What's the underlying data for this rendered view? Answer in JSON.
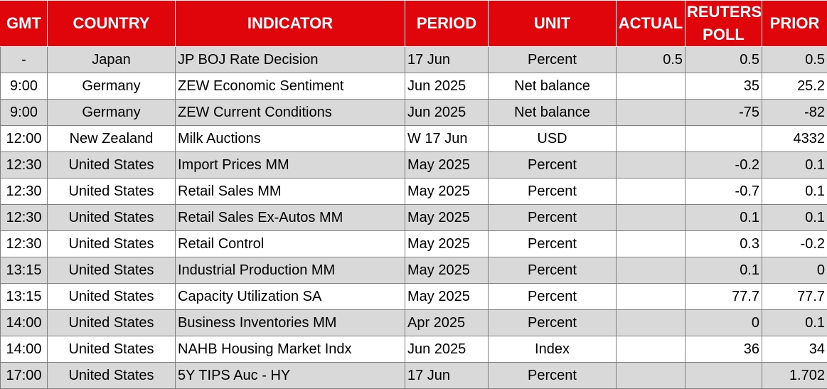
{
  "headers": {
    "gmt": "GMT",
    "country": "COUNTRY",
    "indicator": "INDICATOR",
    "period": "PERIOD",
    "unit": "UNIT",
    "actual": "ACTUAL",
    "reuters_poll": "REUTERS POLL",
    "prior": "PRIOR"
  },
  "colors": {
    "header_bg": "#e0040b",
    "header_text": "#ffffff",
    "row_shaded": "#d9d9d9",
    "row_plain": "#ffffff",
    "grid": "#7f7f7f"
  },
  "rows": [
    {
      "gmt": "-",
      "country": "Japan",
      "indicator": "JP BOJ Rate Decision",
      "period": "17 Jun",
      "unit": "Percent",
      "actual": "0.5",
      "poll": "0.5",
      "prior": "0.5"
    },
    {
      "gmt": "9:00",
      "country": "Germany",
      "indicator": "ZEW Economic Sentiment",
      "period": "Jun 2025",
      "unit": "Net balance",
      "actual": "",
      "poll": "35",
      "prior": "25.2"
    },
    {
      "gmt": "9:00",
      "country": "Germany",
      "indicator": "ZEW Current Conditions",
      "period": "Jun 2025",
      "unit": "Net balance",
      "actual": "",
      "poll": "-75",
      "prior": "-82"
    },
    {
      "gmt": "12:00",
      "country": "New Zealand",
      "indicator": "Milk Auctions",
      "period": "W 17 Jun",
      "unit": "USD",
      "actual": "",
      "poll": "",
      "prior": "4332"
    },
    {
      "gmt": "12:30",
      "country": "United States",
      "indicator": "Import Prices MM",
      "period": "May 2025",
      "unit": "Percent",
      "actual": "",
      "poll": "-0.2",
      "prior": "0.1"
    },
    {
      "gmt": "12:30",
      "country": "United States",
      "indicator": "Retail Sales MM",
      "period": "May 2025",
      "unit": "Percent",
      "actual": "",
      "poll": "-0.7",
      "prior": "0.1"
    },
    {
      "gmt": "12:30",
      "country": "United States",
      "indicator": "Retail Sales Ex-Autos MM",
      "period": "May 2025",
      "unit": "Percent",
      "actual": "",
      "poll": "0.1",
      "prior": "0.1"
    },
    {
      "gmt": "12:30",
      "country": "United States",
      "indicator": "Retail Control",
      "period": "May 2025",
      "unit": "Percent",
      "actual": "",
      "poll": "0.3",
      "prior": "-0.2"
    },
    {
      "gmt": "13:15",
      "country": "United States",
      "indicator": "Industrial Production MM",
      "period": "May 2025",
      "unit": "Percent",
      "actual": "",
      "poll": "0.1",
      "prior": "0"
    },
    {
      "gmt": "13:15",
      "country": "United States",
      "indicator": "Capacity Utilization SA",
      "period": "May 2025",
      "unit": "Percent",
      "actual": "",
      "poll": "77.7",
      "prior": "77.7"
    },
    {
      "gmt": "14:00",
      "country": "United States",
      "indicator": "Business Inventories MM",
      "period": "Apr 2025",
      "unit": "Percent",
      "actual": "",
      "poll": "0",
      "prior": "0.1"
    },
    {
      "gmt": "14:00",
      "country": "United States",
      "indicator": "NAHB Housing Market Indx",
      "period": "Jun 2025",
      "unit": "Index",
      "actual": "",
      "poll": "36",
      "prior": "34"
    },
    {
      "gmt": "17:00",
      "country": "United States",
      "indicator": "5Y TIPS Auc - HY",
      "period": "17 Jun",
      "unit": "Percent",
      "actual": "",
      "poll": "",
      "prior": "1.702"
    }
  ]
}
